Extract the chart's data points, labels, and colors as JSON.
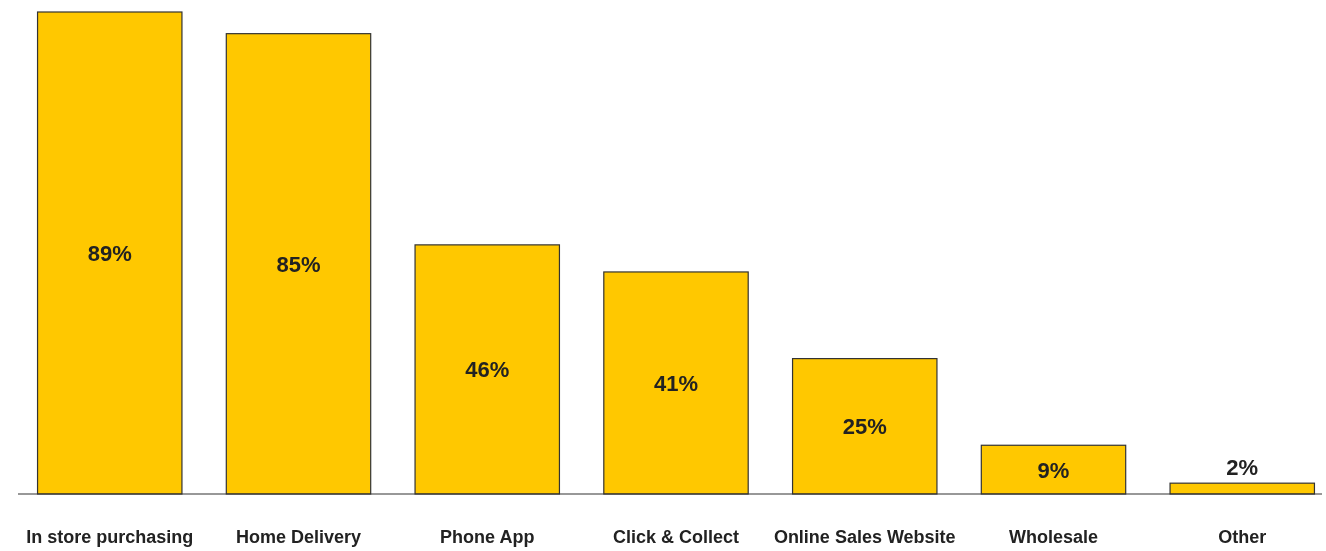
{
  "chart_data": {
    "type": "bar",
    "categories": [
      "In store purchasing",
      "Home Delivery",
      "Phone App",
      "Click & Collect",
      "Online Sales Website",
      "Wholesale",
      "Other"
    ],
    "values": [
      89,
      85,
      46,
      41,
      25,
      9,
      2
    ],
    "color": "#ffc800",
    "data_labels": true,
    "value_labels": [
      "89%",
      "85%",
      "46%",
      "41%",
      "25%",
      "9%",
      "2%"
    ]
  }
}
